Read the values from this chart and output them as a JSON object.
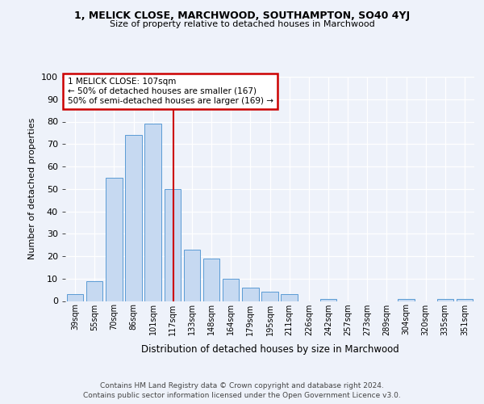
{
  "title1": "1, MELICK CLOSE, MARCHWOOD, SOUTHAMPTON, SO40 4YJ",
  "title2": "Size of property relative to detached houses in Marchwood",
  "xlabel": "Distribution of detached houses by size in Marchwood",
  "ylabel": "Number of detached properties",
  "bar_labels": [
    "39sqm",
    "55sqm",
    "70sqm",
    "86sqm",
    "101sqm",
    "117sqm",
    "133sqm",
    "148sqm",
    "164sqm",
    "179sqm",
    "195sqm",
    "211sqm",
    "226sqm",
    "242sqm",
    "257sqm",
    "273sqm",
    "289sqm",
    "304sqm",
    "320sqm",
    "335sqm",
    "351sqm"
  ],
  "bar_values": [
    3,
    9,
    55,
    74,
    79,
    50,
    23,
    19,
    10,
    6,
    4,
    3,
    0,
    1,
    0,
    0,
    0,
    1,
    0,
    1,
    1
  ],
  "bar_color": "#c6d9f1",
  "bar_edge_color": "#5b9bd5",
  "vline_x": 5.07,
  "vline_color": "#cc0000",
  "annotation_text": "1 MELICK CLOSE: 107sqm\n← 50% of detached houses are smaller (167)\n50% of semi-detached houses are larger (169) →",
  "annotation_box_color": "white",
  "annotation_box_edge": "#cc0000",
  "ylim": [
    0,
    100
  ],
  "yticks": [
    0,
    10,
    20,
    30,
    40,
    50,
    60,
    70,
    80,
    90,
    100
  ],
  "footer_line1": "Contains HM Land Registry data © Crown copyright and database right 2024.",
  "footer_line2": "Contains public sector information licensed under the Open Government Licence v3.0.",
  "background_color": "#eef2fa",
  "grid_color": "#ffffff"
}
